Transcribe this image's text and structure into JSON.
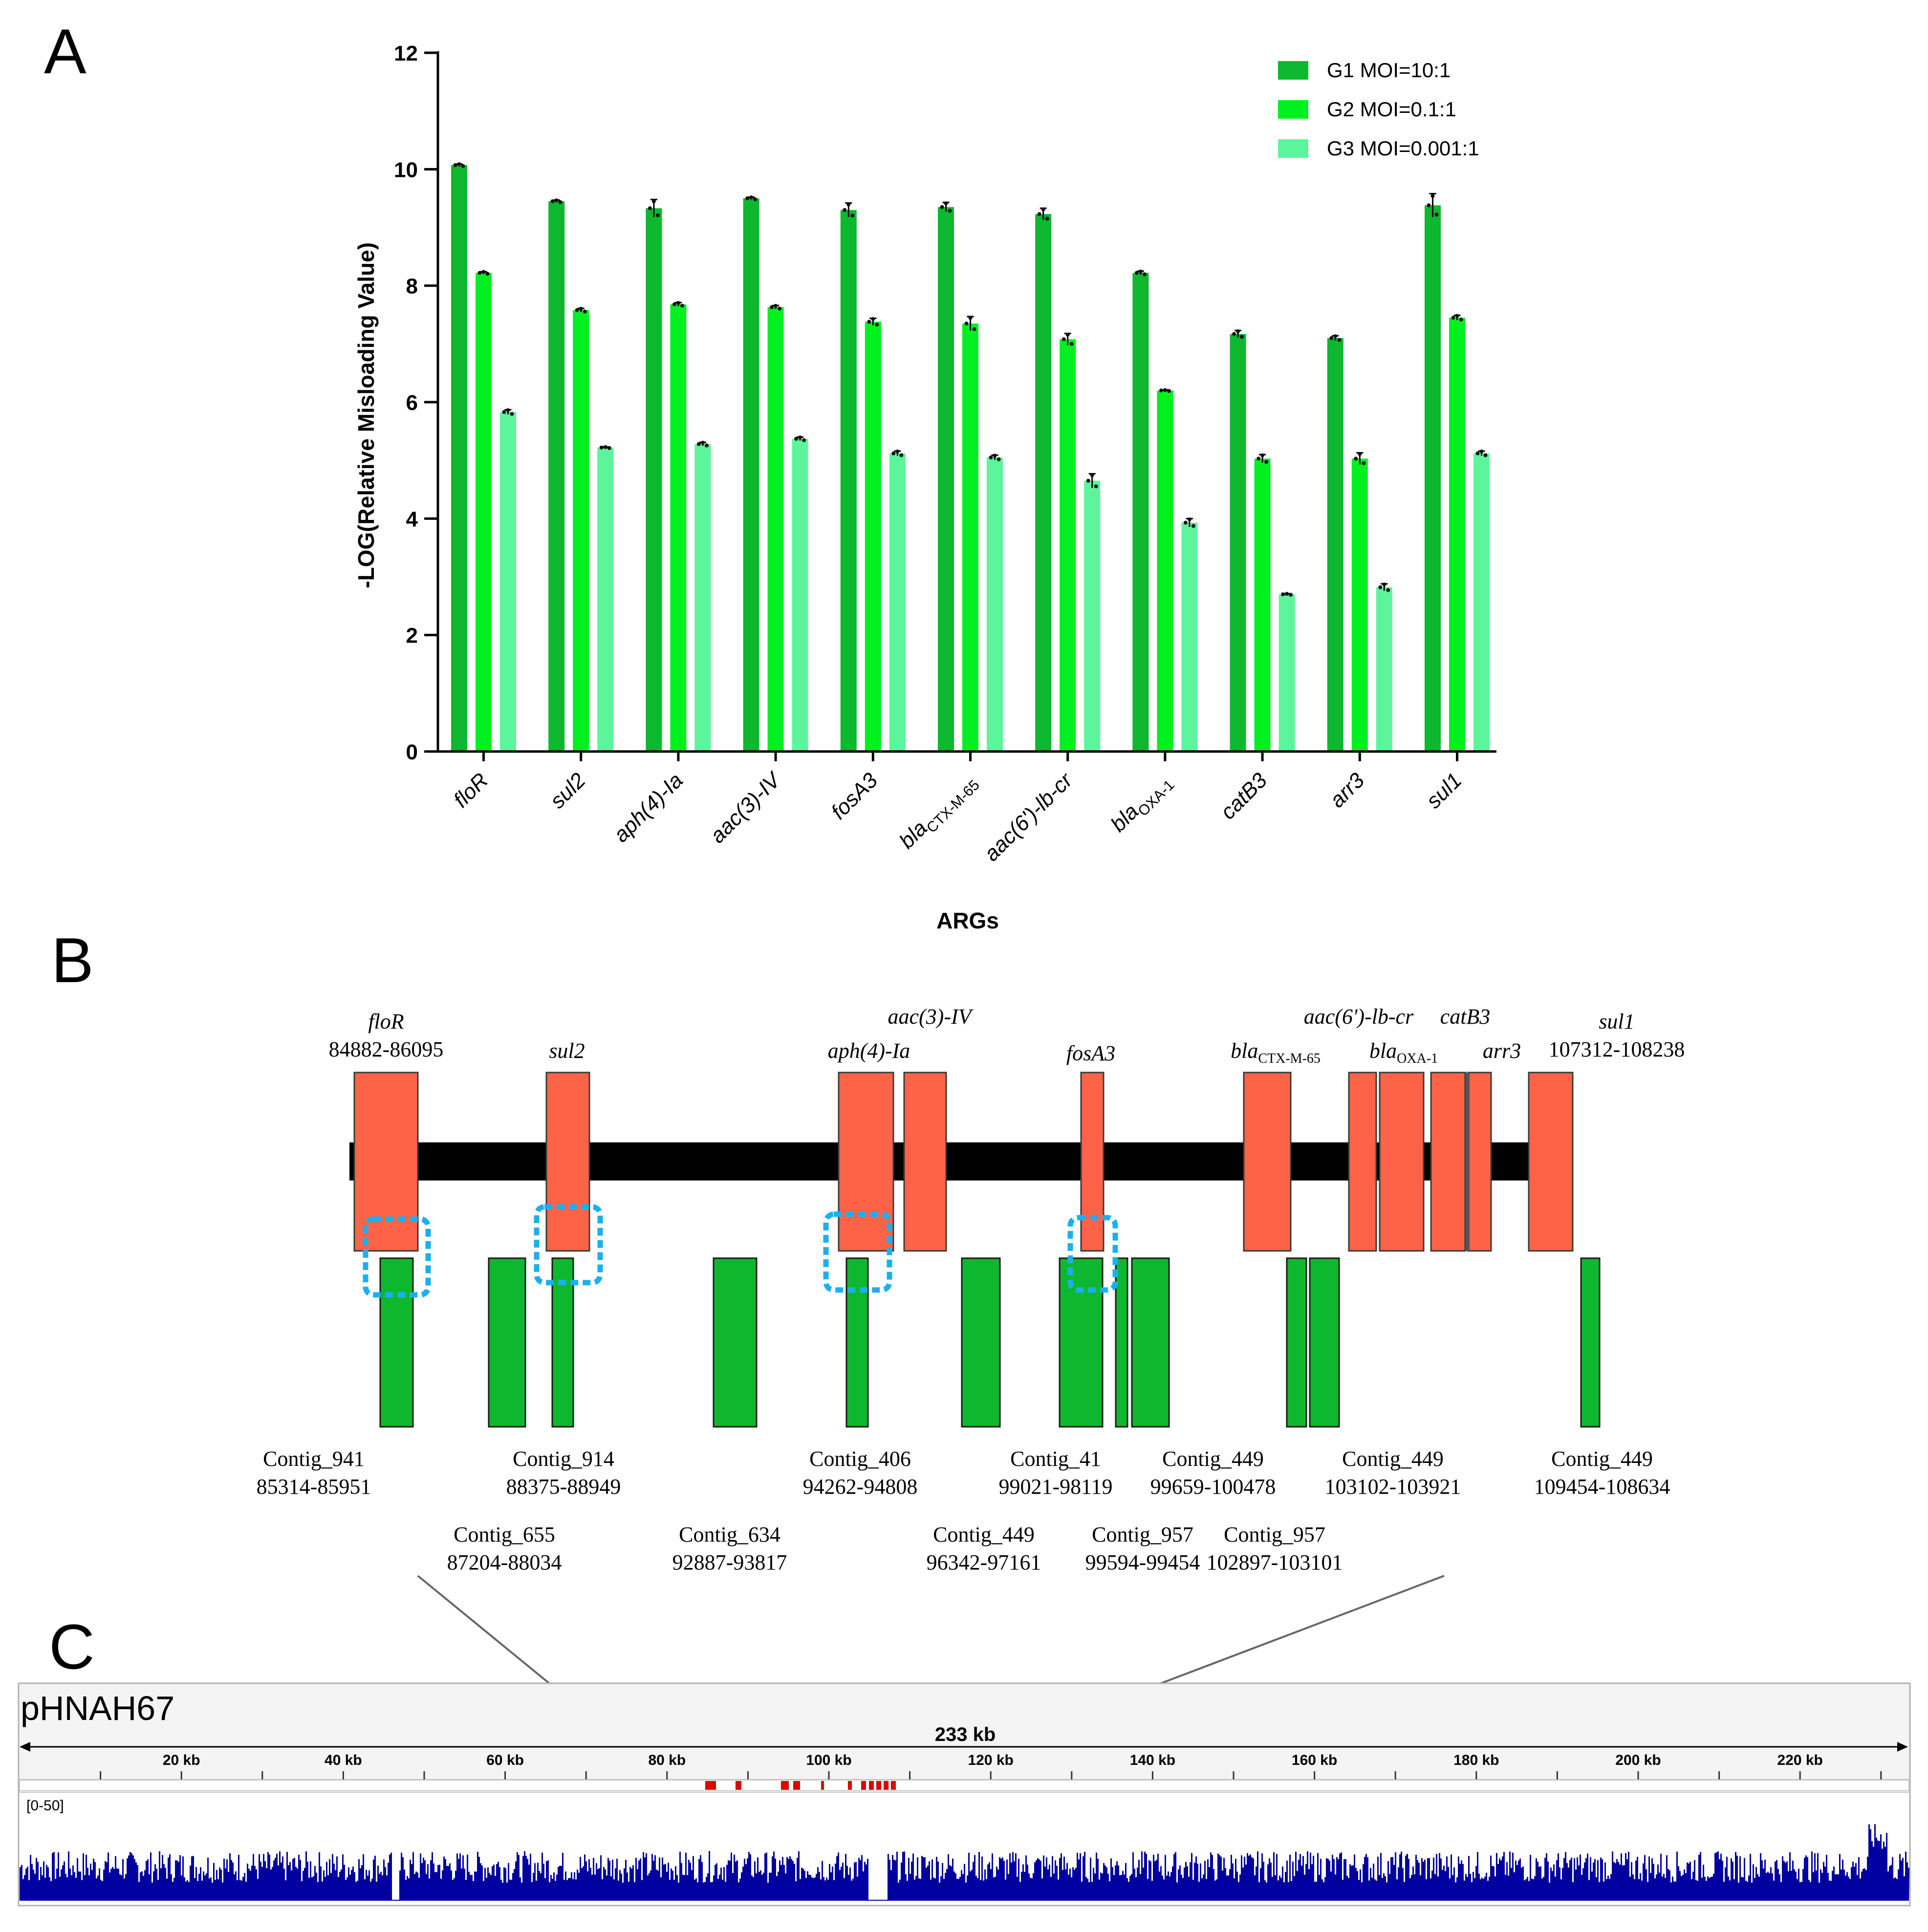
{
  "panels": {
    "a": "A",
    "b": "B",
    "c": "C"
  },
  "chart_data": {
    "type": "bar",
    "title": "",
    "xlabel": "ARGs",
    "ylabel": "-LOG(Relative Misloading Value)",
    "ylim": [
      0,
      12
    ],
    "yticks": [
      "0",
      "2",
      "4",
      "6",
      "8",
      "10",
      "12"
    ],
    "categories": [
      {
        "main": "floR",
        "sub": ""
      },
      {
        "main": "sul2",
        "sub": ""
      },
      {
        "main": "aph(4)-Ia",
        "sub": ""
      },
      {
        "main": "aac(3)-IV",
        "sub": ""
      },
      {
        "main": "fosA3",
        "sub": ""
      },
      {
        "main": "bla",
        "sub": "CTX-M-65"
      },
      {
        "main": "aac(6')-lb-cr",
        "sub": ""
      },
      {
        "main": "bla",
        "sub": "OXA-1"
      },
      {
        "main": "catB3",
        "sub": ""
      },
      {
        "main": "arr3",
        "sub": ""
      },
      {
        "main": "sul1",
        "sub": ""
      }
    ],
    "series": [
      {
        "name": "G1 MOI=10:1",
        "color": "#0DB82E",
        "values": [
          10.07,
          9.45,
          9.33,
          9.5,
          9.3,
          9.35,
          9.23,
          8.22,
          7.17,
          7.1,
          9.38
        ],
        "errors": [
          0.02,
          0.02,
          0.15,
          0.02,
          0.12,
          0.08,
          0.1,
          0.03,
          0.06,
          0.04,
          0.2
        ]
      },
      {
        "name": "G2 MOI=0.1:1",
        "color": "#00F020",
        "values": [
          8.22,
          7.58,
          7.68,
          7.63,
          7.38,
          7.35,
          7.08,
          6.2,
          5.03,
          5.03,
          7.45
        ],
        "errors": [
          0.02,
          0.03,
          0.03,
          0.03,
          0.06,
          0.12,
          0.1,
          0.01,
          0.07,
          0.1,
          0.04
        ]
      },
      {
        "name": "G3 MOI=0.001:1",
        "color": "#5CF59C",
        "values": [
          5.83,
          5.22,
          5.28,
          5.37,
          5.12,
          5.05,
          4.65,
          3.93,
          2.7,
          2.82,
          5.12
        ],
        "errors": [
          0.04,
          0.01,
          0.03,
          0.03,
          0.04,
          0.04,
          0.12,
          0.07,
          0.01,
          0.06,
          0.04
        ]
      }
    ]
  },
  "gene_map": {
    "genes": [
      {
        "name": "floR",
        "sub": "",
        "range": "84882-86095"
      },
      {
        "name": "sul2",
        "sub": "",
        "range": ""
      },
      {
        "name": "aph(4)-Ia",
        "sub": "",
        "range": ""
      },
      {
        "name": "aac(3)-IV",
        "sub": "",
        "range": ""
      },
      {
        "name": "fosA3",
        "sub": "",
        "range": ""
      },
      {
        "name": "bla",
        "sub": "CTX-M-65",
        "range": ""
      },
      {
        "name": "aac(6')-lb-cr",
        "sub": "",
        "range": ""
      },
      {
        "name": "bla",
        "sub": "OXA-1",
        "range": ""
      },
      {
        "name": "catB3",
        "sub": "",
        "range": ""
      },
      {
        "name": "arr3",
        "sub": "",
        "range": ""
      },
      {
        "name": "sul1",
        "sub": "",
        "range": "107312-108238"
      }
    ],
    "contigs": [
      {
        "name": "Contig_941",
        "range": "85314-85951"
      },
      {
        "name": "Contig_655",
        "range": "87204-88034"
      },
      {
        "name": "Contig_914",
        "range": "88375-88949"
      },
      {
        "name": "Contig_634",
        "range": "92887-93817"
      },
      {
        "name": "Contig_406",
        "range": "94262-94808"
      },
      {
        "name": "Contig_449",
        "range": "96342-97161"
      },
      {
        "name": "Contig_41",
        "range": "99021-98119"
      },
      {
        "name": "Contig_957",
        "range": "99594-99454"
      },
      {
        "name": "Contig_449",
        "range": "99659-100478"
      },
      {
        "name": "Contig_957",
        "range": "102897-103101"
      },
      {
        "name": "Contig_449",
        "range": "103102-103921"
      },
      {
        "name": "Contig_449",
        "range": "109454-108634"
      }
    ]
  },
  "igv": {
    "sequence_name": "pHNAH67",
    "total_length": "233 kb",
    "ticks": [
      "20 kb",
      "40 kb",
      "60 kb",
      "80 kb",
      "100 kb",
      "120 kb",
      "140 kb",
      "160 kb",
      "180 kb",
      "200 kb",
      "220 kb"
    ],
    "data_range": "[0-50]",
    "track_color": "#0000A0",
    "feature_color": "#E00000"
  }
}
